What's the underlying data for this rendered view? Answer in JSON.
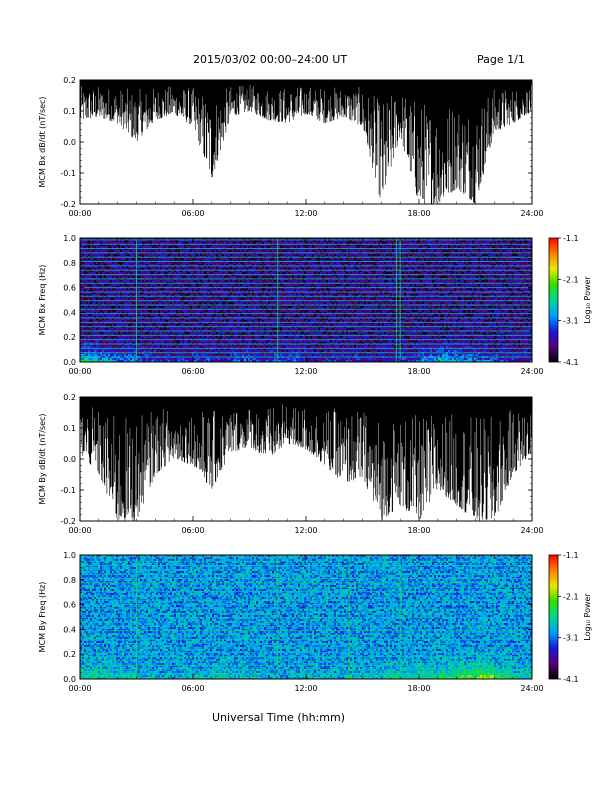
{
  "header": {
    "title": "2015/03/02  00:00–24:00 UT",
    "page": "Page 1/1"
  },
  "footer": {
    "xlabel": "Universal Time (hh:mm)"
  },
  "colors": {
    "trace": "#000000",
    "colormap": [
      "#000000",
      "#5a007a",
      "#1818d8",
      "#00a0ff",
      "#00d890",
      "#30e000",
      "#e8e800",
      "#ff8000",
      "#ff0000"
    ]
  },
  "chart_data": [
    {
      "type": "line",
      "ylabel": "MCM Bx dB/dt (nT/sec)",
      "xlabel": "",
      "xlim": [
        "00:00",
        "24:00"
      ],
      "xticks": [
        "00:00",
        "06:00",
        "12:00",
        "18:00",
        "24:00"
      ],
      "ylim": [
        -0.2,
        0.2
      ],
      "yticks": [
        "0.2",
        "0.1",
        "0.0",
        "-0.1",
        "-0.2"
      ],
      "series": [
        {
          "x": [
            "00:00",
            "01:00",
            "02:00",
            "03:00",
            "04:00",
            "05:00",
            "06:00",
            "07:00",
            "08:00",
            "09:00",
            "10:00",
            "11:00",
            "12:00",
            "13:00",
            "14:00",
            "15:00",
            "16:00",
            "17:00",
            "18:00",
            "19:00",
            "20:00",
            "21:00",
            "22:00",
            "23:00",
            "24:00"
          ],
          "upper": [
            0.2,
            0.2,
            0.2,
            0.2,
            0.2,
            0.2,
            0.2,
            0.2,
            0.2,
            0.2,
            0.2,
            0.2,
            0.2,
            0.2,
            0.2,
            0.2,
            0.2,
            0.2,
            0.2,
            0.2,
            0.2,
            0.2,
            0.2,
            0.2,
            0.2
          ],
          "lower": [
            0.07,
            0.08,
            0.06,
            0.0,
            0.07,
            0.09,
            0.05,
            -0.12,
            0.08,
            0.1,
            0.07,
            0.06,
            0.09,
            0.06,
            0.08,
            0.05,
            -0.2,
            0.02,
            -0.2,
            -0.2,
            -0.15,
            -0.2,
            0.03,
            0.06,
            0.1
          ]
        }
      ]
    },
    {
      "type": "heatmap",
      "ylabel": "MCM Bx Freq (Hz)",
      "xlabel": "",
      "xlim": [
        "00:00",
        "24:00"
      ],
      "xticks": [
        "00:00",
        "06:00",
        "12:00",
        "18:00",
        "24:00"
      ],
      "ylim": [
        0.0,
        1.0
      ],
      "yticks": [
        "1.0",
        "0.8",
        "0.6",
        "0.4",
        "0.2",
        "0.0"
      ],
      "colorbar_label": "Log₁₀ Power",
      "clim": [
        -4.1,
        -1.1
      ],
      "cbar_ticks": [
        "-1.1",
        "-2.1",
        "-3.1",
        "-4.1"
      ],
      "harmonic_lines_hz": [
        0.04,
        0.075,
        0.11,
        0.145,
        0.18,
        0.215,
        0.25,
        0.285,
        0.32,
        0.355,
        0.39,
        0.425,
        0.46,
        0.495,
        0.53,
        0.565,
        0.6,
        0.635,
        0.67,
        0.705,
        0.74,
        0.775,
        0.81,
        0.845,
        0.88,
        0.915,
        0.95,
        0.985
      ],
      "vertical_lines_hours": [
        3.0,
        10.5,
        16.8,
        17.0
      ],
      "low_freq_power_by_hour": [
        -2.4,
        -2.7,
        -3.0,
        -3.2,
        -3.3,
        -3.3,
        -3.2,
        -3.4,
        -3.1,
        -3.3,
        -3.2,
        -3.2,
        -3.5,
        -3.4,
        -3.4,
        -3.5,
        -3.4,
        -3.3,
        -2.9,
        -2.7,
        -2.9,
        -3.0,
        -3.3,
        -3.4
      ],
      "background_power": -3.7
    },
    {
      "type": "line",
      "ylabel": "MCM By dB/dt (nT/sec)",
      "xlabel": "",
      "xlim": [
        "00:00",
        "24:00"
      ],
      "xticks": [
        "00:00",
        "06:00",
        "12:00",
        "18:00",
        "24:00"
      ],
      "ylim": [
        -0.2,
        0.2
      ],
      "yticks": [
        "0.2",
        "0.1",
        "0.0",
        "-0.1",
        "-0.2"
      ],
      "series": [
        {
          "x": [
            "00:00",
            "01:00",
            "02:00",
            "03:00",
            "04:00",
            "05:00",
            "06:00",
            "07:00",
            "08:00",
            "09:00",
            "10:00",
            "11:00",
            "12:00",
            "13:00",
            "14:00",
            "15:00",
            "16:00",
            "17:00",
            "18:00",
            "19:00",
            "20:00",
            "21:00",
            "22:00",
            "23:00",
            "24:00"
          ],
          "upper": [
            0.2,
            0.2,
            0.2,
            0.2,
            0.2,
            0.2,
            0.2,
            0.2,
            0.2,
            0.2,
            0.2,
            0.2,
            0.2,
            0.2,
            0.2,
            0.2,
            0.2,
            0.2,
            0.2,
            0.2,
            0.2,
            0.2,
            0.2,
            0.2,
            0.2
          ],
          "lower": [
            0.02,
            -0.05,
            -0.2,
            -0.2,
            -0.05,
            0.0,
            -0.02,
            -0.1,
            0.02,
            0.04,
            0.0,
            0.05,
            0.03,
            -0.02,
            -0.08,
            -0.06,
            -0.2,
            -0.15,
            -0.2,
            -0.1,
            -0.15,
            -0.2,
            -0.2,
            -0.05,
            0.02
          ]
        }
      ]
    },
    {
      "type": "heatmap",
      "ylabel": "MCM By Freq (Hz)",
      "xlabel": "Universal Time (hh:mm)",
      "xlim": [
        "00:00",
        "24:00"
      ],
      "xticks": [
        "00:00",
        "06:00",
        "12:00",
        "18:00",
        "24:00"
      ],
      "ylim": [
        0.0,
        1.0
      ],
      "yticks": [
        "1.0",
        "0.8",
        "0.6",
        "0.4",
        "0.2",
        "0.0"
      ],
      "colorbar_label": "Log₁₀ Power",
      "clim": [
        -4.1,
        -1.1
      ],
      "cbar_ticks": [
        "-1.1",
        "-2.1",
        "-3.1",
        "-4.1"
      ],
      "harmonic_lines_hz": [
        0.04,
        0.075,
        0.11,
        0.145,
        0.18,
        0.215,
        0.25,
        0.285,
        0.32,
        0.355,
        0.39,
        0.425,
        0.46,
        0.495,
        0.53,
        0.565,
        0.6,
        0.635,
        0.67,
        0.705,
        0.74,
        0.775,
        0.81,
        0.845,
        0.88,
        0.915,
        0.95,
        0.985
      ],
      "vertical_lines_hours": [
        3.0,
        10.5,
        14.3,
        17.0
      ],
      "low_freq_power_by_hour": [
        -2.5,
        -2.6,
        -2.7,
        -2.8,
        -2.9,
        -2.8,
        -2.8,
        -2.6,
        -2.7,
        -2.8,
        -2.9,
        -2.8,
        -2.9,
        -2.9,
        -2.8,
        -2.7,
        -2.5,
        -2.6,
        -2.4,
        -2.3,
        -2.0,
        -1.9,
        -2.3,
        -2.6
      ],
      "background_power": -3.0
    }
  ]
}
